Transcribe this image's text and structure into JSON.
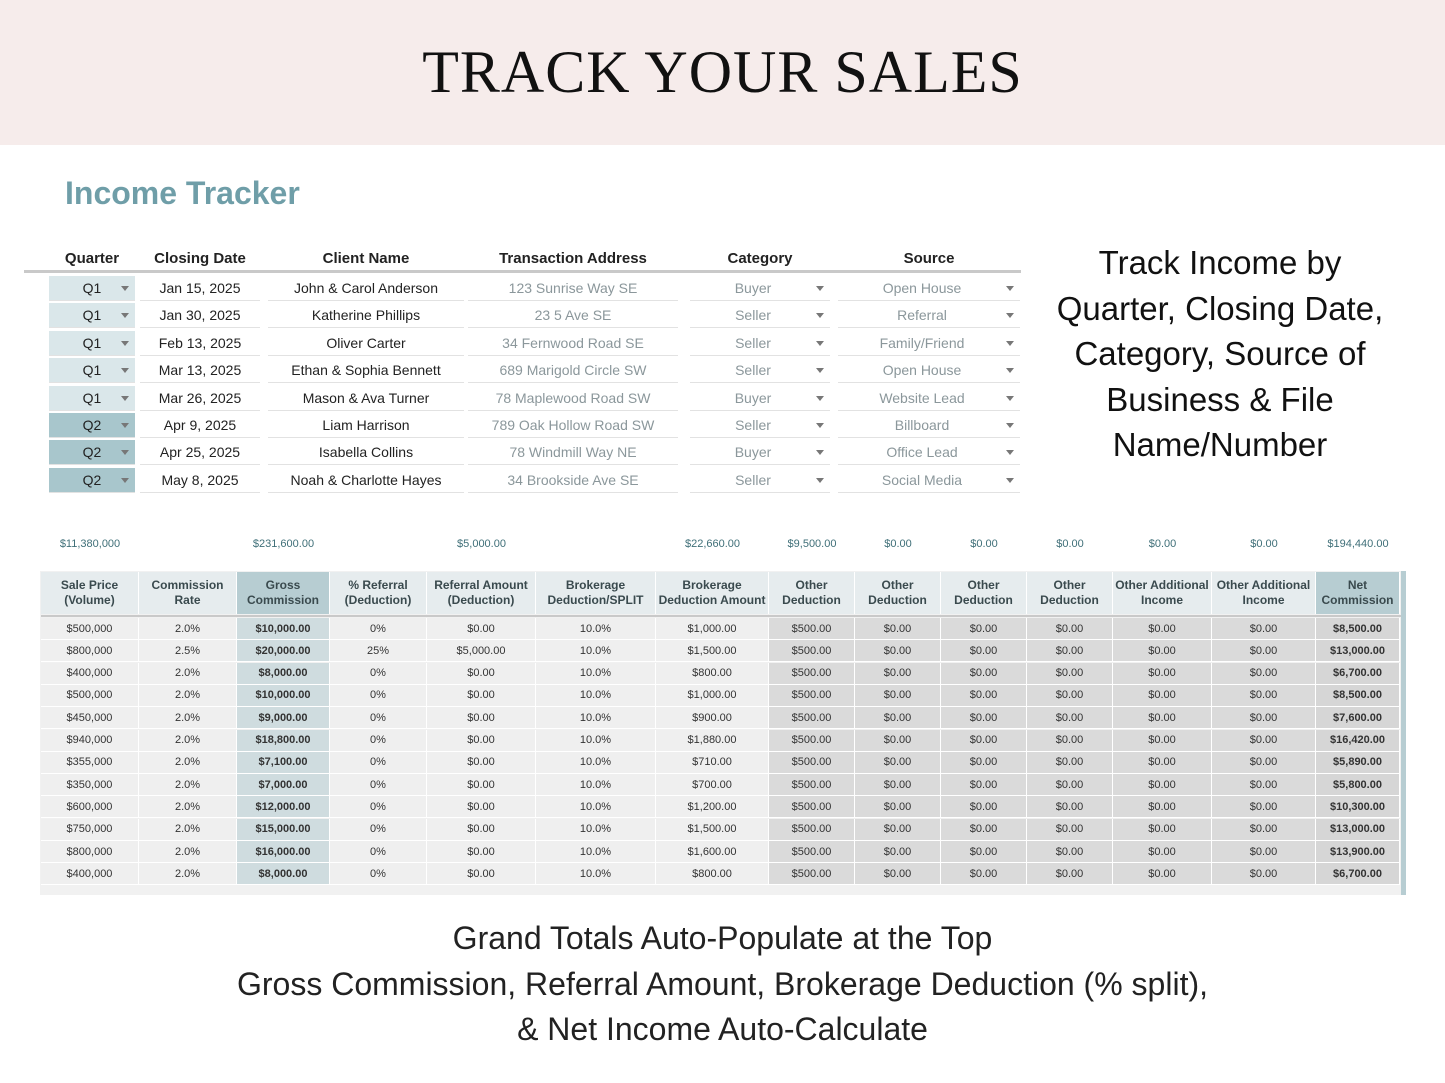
{
  "header": {
    "title": "TRACK YOUR SALES"
  },
  "tracker": {
    "title": "Income Tracker"
  },
  "table1": {
    "headers": [
      "Quarter",
      "Closing Date",
      "Client Name",
      "Transaction Address",
      "Category",
      "Source"
    ],
    "rows": [
      [
        "Q1",
        "Jan 15, 2025",
        "John & Carol Anderson",
        "123 Sunrise Way SE",
        "Buyer",
        "Open House"
      ],
      [
        "Q1",
        "Jan 30, 2025",
        "Katherine Phillips",
        "23 5 Ave SE",
        "Seller",
        "Referral"
      ],
      [
        "Q1",
        "Feb 13, 2025",
        "Oliver Carter",
        "34 Fernwood Road SE",
        "Seller",
        "Family/Friend"
      ],
      [
        "Q1",
        "Mar 13, 2025",
        "Ethan & Sophia Bennett",
        "689 Marigold Circle SW",
        "Seller",
        "Open House"
      ],
      [
        "Q1",
        "Mar 26, 2025",
        "Mason & Ava Turner",
        "78 Maplewood Road SW",
        "Buyer",
        "Website Lead"
      ],
      [
        "Q2",
        "Apr 9, 2025",
        "Liam Harrison",
        "789 Oak Hollow Road SW",
        "Seller",
        "Billboard"
      ],
      [
        "Q2",
        "Apr 25, 2025",
        "Isabella Collins",
        "78 Windmill Way NE",
        "Buyer",
        "Office Lead"
      ],
      [
        "Q2",
        "May 8, 2025",
        "Noah & Charlotte Hayes",
        "34 Brookside Ave SE",
        "Seller",
        "Social Media"
      ]
    ]
  },
  "note": {
    "lines": [
      "Track Income by",
      "Quarter, Closing Date,",
      "Category, Source of",
      "Business & File",
      "Name/Number"
    ]
  },
  "table2": {
    "totals": [
      "$11,380,000",
      null,
      "$231,600.00",
      null,
      "$5,000.00",
      null,
      "$22,660.00",
      "$9,500.00",
      "$0.00",
      "$0.00",
      "$0.00",
      "$0.00",
      "$0.00",
      "$194,440.00"
    ],
    "headers": [
      [
        "Sale Price",
        "(Volume)"
      ],
      [
        "Commission",
        "Rate"
      ],
      [
        "Gross",
        "Commission"
      ],
      [
        "% Referral",
        "(Deduction)"
      ],
      [
        "Referral Amount",
        "(Deduction)"
      ],
      [
        "Brokerage",
        "Deduction/SPLIT"
      ],
      [
        "Brokerage",
        "Deduction Amount"
      ],
      [
        "Other",
        "Deduction"
      ],
      [
        "Other",
        "Deduction"
      ],
      [
        "Other",
        "Deduction"
      ],
      [
        "Other",
        "Deduction"
      ],
      [
        "Other Additional",
        "Income"
      ],
      [
        "Other Additional",
        "Income"
      ],
      [
        "Net",
        "Commission"
      ]
    ],
    "rows": [
      [
        "$500,000",
        "2.0%",
        "$10,000.00",
        "0%",
        "$0.00",
        "10.0%",
        "$1,000.00",
        "$500.00",
        "$0.00",
        "$0.00",
        "$0.00",
        "$0.00",
        "$0.00",
        "$8,500.00"
      ],
      [
        "$800,000",
        "2.5%",
        "$20,000.00",
        "25%",
        "$5,000.00",
        "10.0%",
        "$1,500.00",
        "$500.00",
        "$0.00",
        "$0.00",
        "$0.00",
        "$0.00",
        "$0.00",
        "$13,000.00"
      ],
      [
        "$400,000",
        "2.0%",
        "$8,000.00",
        "0%",
        "$0.00",
        "10.0%",
        "$800.00",
        "$500.00",
        "$0.00",
        "$0.00",
        "$0.00",
        "$0.00",
        "$0.00",
        "$6,700.00"
      ],
      [
        "$500,000",
        "2.0%",
        "$10,000.00",
        "0%",
        "$0.00",
        "10.0%",
        "$1,000.00",
        "$500.00",
        "$0.00",
        "$0.00",
        "$0.00",
        "$0.00",
        "$0.00",
        "$8,500.00"
      ],
      [
        "$450,000",
        "2.0%",
        "$9,000.00",
        "0%",
        "$0.00",
        "10.0%",
        "$900.00",
        "$500.00",
        "$0.00",
        "$0.00",
        "$0.00",
        "$0.00",
        "$0.00",
        "$7,600.00"
      ],
      [
        "$940,000",
        "2.0%",
        "$18,800.00",
        "0%",
        "$0.00",
        "10.0%",
        "$1,880.00",
        "$500.00",
        "$0.00",
        "$0.00",
        "$0.00",
        "$0.00",
        "$0.00",
        "$16,420.00"
      ],
      [
        "$355,000",
        "2.0%",
        "$7,100.00",
        "0%",
        "$0.00",
        "10.0%",
        "$710.00",
        "$500.00",
        "$0.00",
        "$0.00",
        "$0.00",
        "$0.00",
        "$0.00",
        "$5,890.00"
      ],
      [
        "$350,000",
        "2.0%",
        "$7,000.00",
        "0%",
        "$0.00",
        "10.0%",
        "$700.00",
        "$500.00",
        "$0.00",
        "$0.00",
        "$0.00",
        "$0.00",
        "$0.00",
        "$5,800.00"
      ],
      [
        "$600,000",
        "2.0%",
        "$12,000.00",
        "0%",
        "$0.00",
        "10.0%",
        "$1,200.00",
        "$500.00",
        "$0.00",
        "$0.00",
        "$0.00",
        "$0.00",
        "$0.00",
        "$10,300.00"
      ],
      [
        "$750,000",
        "2.0%",
        "$15,000.00",
        "0%",
        "$0.00",
        "10.0%",
        "$1,500.00",
        "$500.00",
        "$0.00",
        "$0.00",
        "$0.00",
        "$0.00",
        "$0.00",
        "$13,000.00"
      ],
      [
        "$800,000",
        "2.0%",
        "$16,000.00",
        "0%",
        "$0.00",
        "10.0%",
        "$1,600.00",
        "$500.00",
        "$0.00",
        "$0.00",
        "$0.00",
        "$0.00",
        "$0.00",
        "$13,900.00"
      ],
      [
        "$400,000",
        "2.0%",
        "$8,000.00",
        "0%",
        "$0.00",
        "10.0%",
        "$800.00",
        "$500.00",
        "$0.00",
        "$0.00",
        "$0.00",
        "$0.00",
        "$0.00",
        "$6,700.00"
      ]
    ]
  },
  "footer": {
    "lines": [
      "Grand Totals Auto-Populate at the Top",
      "Gross Commission, Referral Amount, Brokerage Deduction (% split),",
      "& Net Income Auto-Calculate"
    ]
  }
}
